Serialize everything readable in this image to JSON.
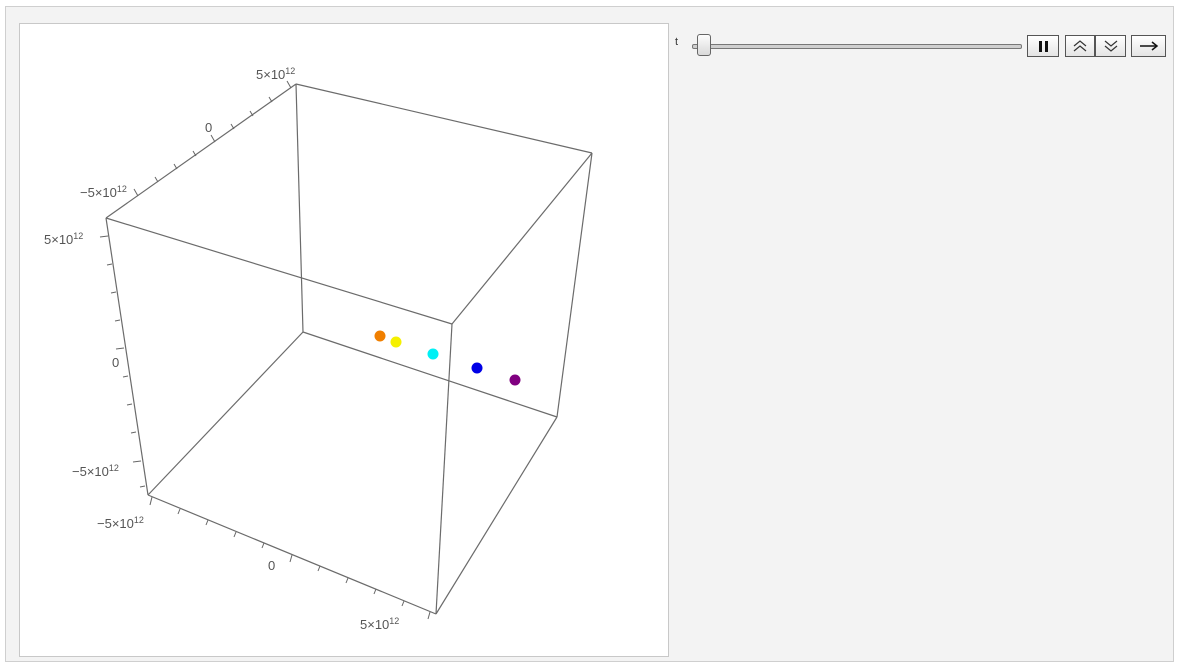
{
  "manipulate": {
    "control_label": "t",
    "slider_value": 0,
    "buttons": {
      "pause": "pause-icon",
      "faster": "double-chevron-up-icon",
      "slower": "double-chevron-down-icon",
      "direction": "right-arrow-icon"
    }
  },
  "plot": {
    "type": "scatter3d",
    "axis_ticks": {
      "neg": "−5×10",
      "zero": "0",
      "pos": "5×10",
      "exponent": "12"
    },
    "points": [
      {
        "name": "orange",
        "color": "#f07f00"
      },
      {
        "name": "yellow",
        "color": "#f5f000"
      },
      {
        "name": "cyan",
        "color": "#00f0f5"
      },
      {
        "name": "blue",
        "color": "#0000e6"
      },
      {
        "name": "purple",
        "color": "#800080"
      }
    ]
  }
}
